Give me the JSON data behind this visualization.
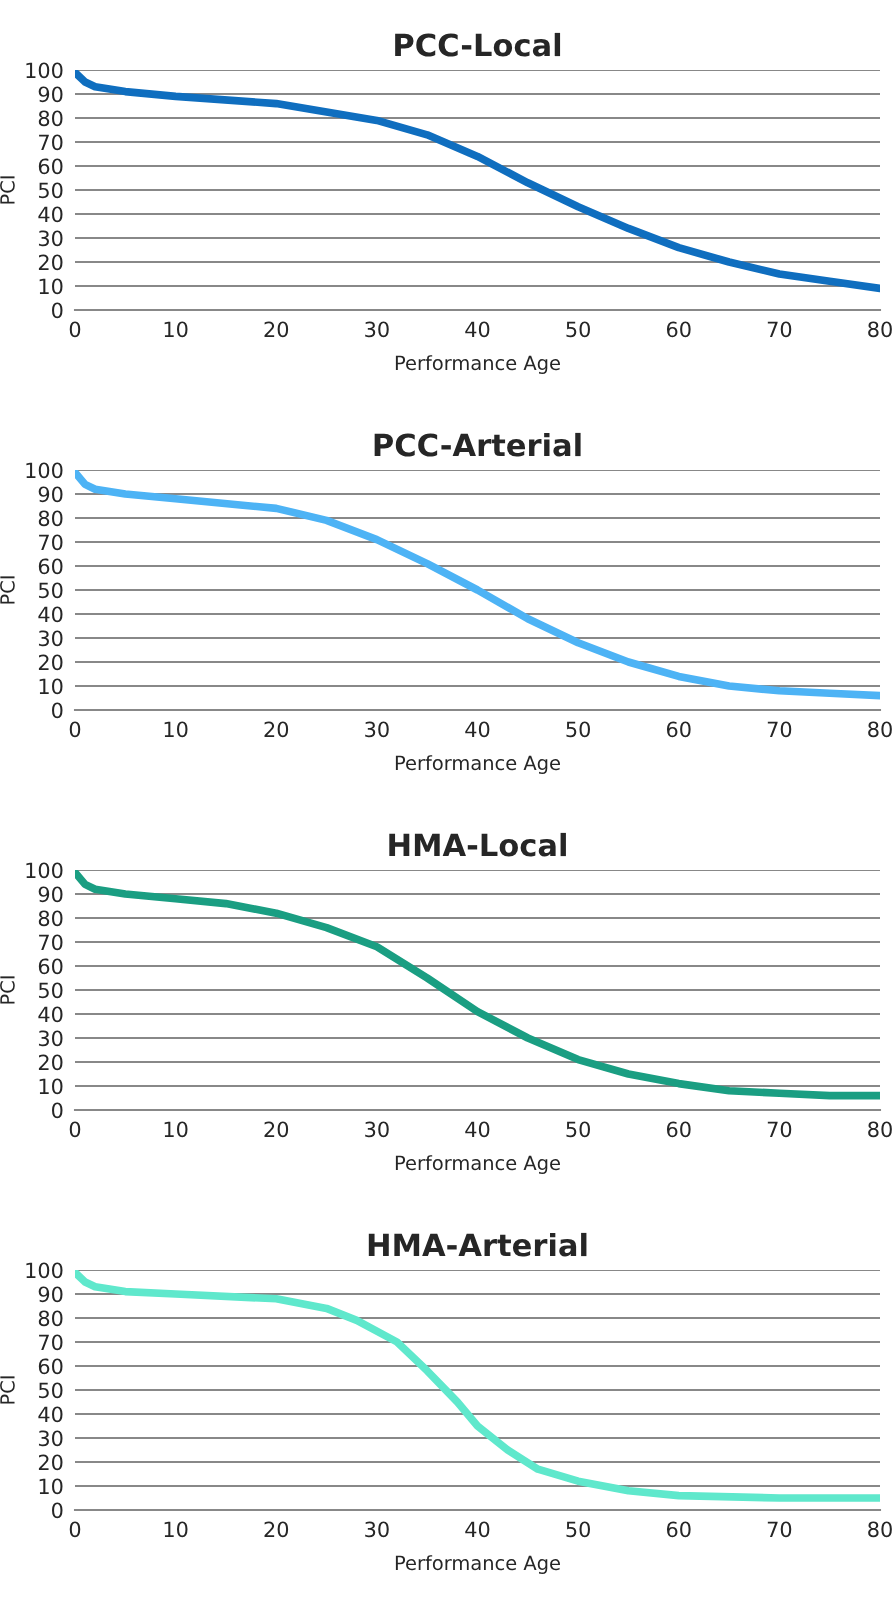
{
  "chart_data": [
    {
      "type": "line",
      "title": "PCC-Local",
      "xlabel": "Performance Age",
      "ylabel": "PCI",
      "xlim": [
        0,
        80
      ],
      "xticks": [
        0,
        10,
        20,
        30,
        40,
        50,
        60,
        70,
        80
      ],
      "ylim": [
        0,
        100
      ],
      "yticks": [
        0,
        10,
        20,
        30,
        40,
        50,
        60,
        70,
        80,
        90,
        100
      ],
      "grid": "y",
      "series": [
        {
          "color": "#0f6ebf",
          "x": [
            0,
            1,
            2,
            5,
            10,
            20,
            30,
            35,
            40,
            45,
            50,
            55,
            60,
            65,
            70,
            75,
            80
          ],
          "values": [
            99,
            95,
            93,
            91,
            89,
            86,
            79,
            73,
            64,
            53,
            43,
            34,
            26,
            20,
            15,
            12,
            9
          ]
        }
      ]
    },
    {
      "type": "line",
      "title": "PCC-Arterial",
      "xlabel": "Performance Age",
      "ylabel": "PCI",
      "xlim": [
        0,
        80
      ],
      "xticks": [
        0,
        10,
        20,
        30,
        40,
        50,
        60,
        70,
        80
      ],
      "ylim": [
        0,
        100
      ],
      "yticks": [
        0,
        10,
        20,
        30,
        40,
        50,
        60,
        70,
        80,
        90,
        100
      ],
      "grid": "y",
      "series": [
        {
          "color": "#4db3f5",
          "x": [
            0,
            1,
            2,
            5,
            10,
            20,
            25,
            30,
            35,
            40,
            45,
            50,
            55,
            60,
            65,
            70,
            75,
            80
          ],
          "values": [
            99,
            94,
            92,
            90,
            88,
            84,
            79,
            71,
            61,
            50,
            38,
            28,
            20,
            14,
            10,
            8,
            7,
            6
          ]
        }
      ]
    },
    {
      "type": "line",
      "title": "HMA-Local",
      "xlabel": "Performance Age",
      "ylabel": "PCI",
      "xlim": [
        0,
        80
      ],
      "xticks": [
        0,
        10,
        20,
        30,
        40,
        50,
        60,
        70,
        80
      ],
      "ylim": [
        0,
        100
      ],
      "yticks": [
        0,
        10,
        20,
        30,
        40,
        50,
        60,
        70,
        80,
        90,
        100
      ],
      "grid": "y",
      "series": [
        {
          "color": "#1a9e82",
          "x": [
            0,
            1,
            2,
            5,
            10,
            15,
            20,
            25,
            30,
            35,
            40,
            45,
            50,
            55,
            60,
            65,
            70,
            75,
            80
          ],
          "values": [
            99,
            94,
            92,
            90,
            88,
            86,
            82,
            76,
            68,
            55,
            41,
            30,
            21,
            15,
            11,
            8,
            7,
            6,
            6
          ]
        }
      ]
    },
    {
      "type": "line",
      "title": "HMA-Arterial",
      "xlabel": "Performance Age",
      "ylabel": "PCI",
      "xlim": [
        0,
        80
      ],
      "xticks": [
        0,
        10,
        20,
        30,
        40,
        50,
        60,
        70,
        80
      ],
      "ylim": [
        0,
        100
      ],
      "yticks": [
        0,
        10,
        20,
        30,
        40,
        50,
        60,
        70,
        80,
        90,
        100
      ],
      "grid": "y",
      "series": [
        {
          "color": "#5fe8cc",
          "x": [
            0,
            1,
            2,
            5,
            10,
            20,
            25,
            28,
            32,
            35,
            38,
            40,
            43,
            46,
            50,
            55,
            60,
            70,
            80
          ],
          "values": [
            99,
            95,
            93,
            91,
            90,
            88,
            84,
            79,
            70,
            58,
            45,
            35,
            25,
            17,
            12,
            8,
            6,
            5,
            5
          ]
        }
      ]
    }
  ]
}
